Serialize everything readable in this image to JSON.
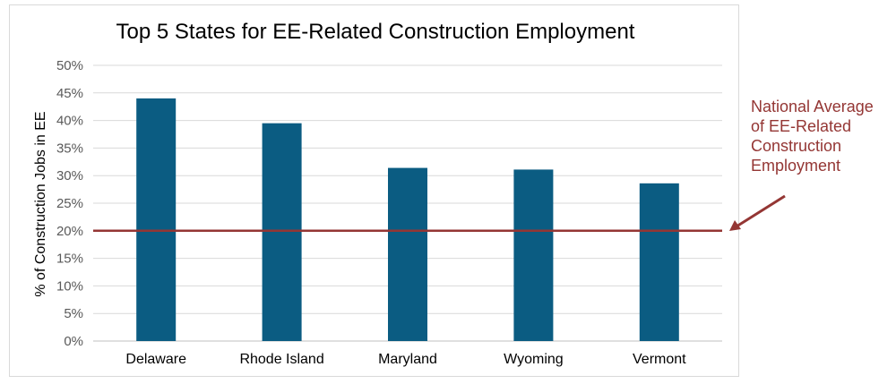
{
  "chart_data": {
    "type": "bar",
    "title": "Top 5 States for EE-Related Construction Employment",
    "xlabel": "",
    "ylabel": "% of Construction Jobs in EE",
    "categories": [
      "Delaware",
      "Rhode Island",
      "Maryland",
      "Wyoming",
      "Vermont"
    ],
    "values": [
      44,
      39.5,
      31.4,
      31.1,
      28.6
    ],
    "ylim": [
      0,
      50
    ],
    "yticks": [
      "0%",
      "5%",
      "10%",
      "15%",
      "20%",
      "25%",
      "30%",
      "35%",
      "40%",
      "45%",
      "50%"
    ],
    "grid": true,
    "bar_color": "#0b5c82",
    "reference_line": {
      "value": 20,
      "color": "#943634"
    }
  },
  "annotation": {
    "lines": [
      "National Average",
      "of EE-Related",
      "Construction",
      "Employment"
    ],
    "color": "#943634"
  }
}
